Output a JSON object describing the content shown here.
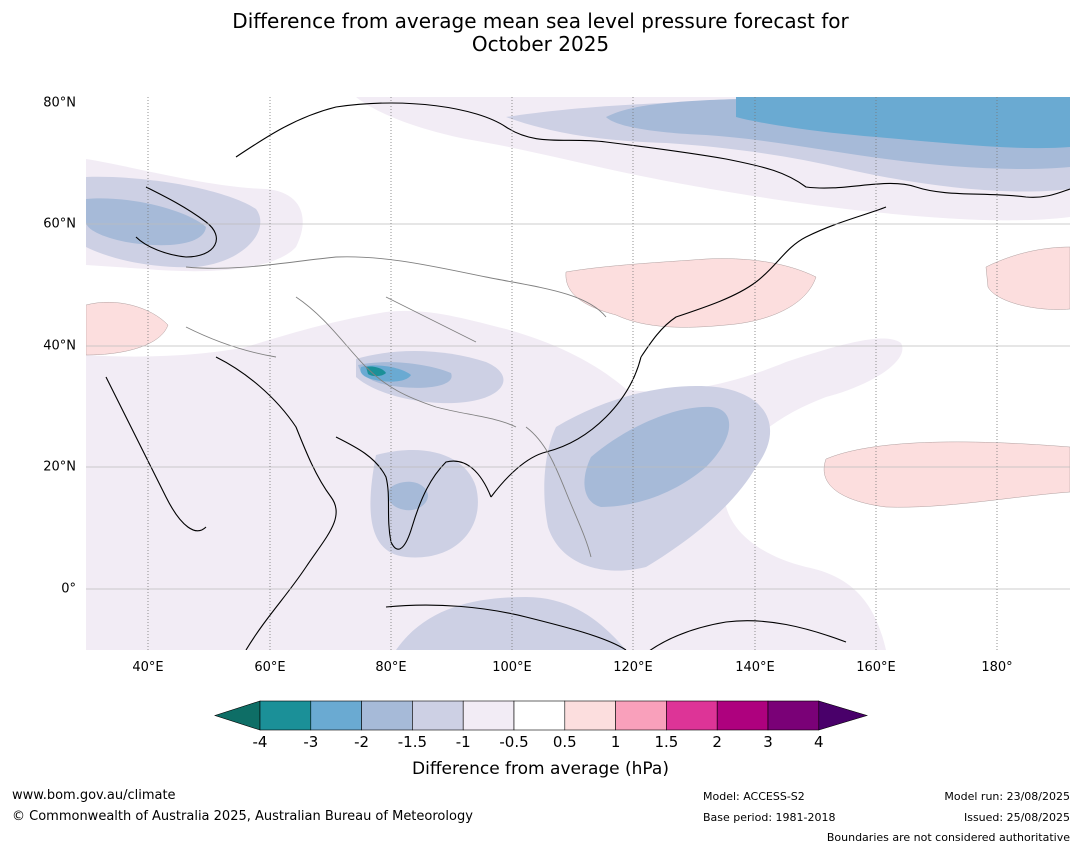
{
  "title_line1": "Difference from average mean sea level pressure forecast for",
  "title_line2": "October 2025",
  "lat_ticks": [
    "80°N",
    "60°N",
    "40°N",
    "20°N",
    "0°"
  ],
  "lon_ticks": [
    "40°E",
    "60°E",
    "80°E",
    "100°E",
    "120°E",
    "140°E",
    "160°E",
    "180°"
  ],
  "colorbar": {
    "ticks": [
      "-4",
      "-3",
      "-2",
      "-1.5",
      "-1",
      "-0.5",
      "0.5",
      "1",
      "1.5",
      "2",
      "3",
      "4"
    ],
    "colors": [
      "#0e6e66",
      "#1b9098",
      "#6aaad2",
      "#a6bad8",
      "#cdd0e4",
      "#f2ecf5",
      "#ffffff",
      "#fcdede",
      "#f9a0bb",
      "#dd3497",
      "#ae017e",
      "#7a0177",
      "#49006a"
    ],
    "label": "Difference from average (hPa)"
  },
  "footer": {
    "website": "www.bom.gov.au/climate",
    "copyright": "© Commonwealth of Australia 2025, Australian Bureau of Meteorology",
    "model": "Model: ACCESS-S2",
    "base_period": "Base period: 1981-2018",
    "model_run": "Model run: 23/08/2025",
    "issued": "Issued: 25/08/2025",
    "disclaimer": "Boundaries are not considered authoritative"
  }
}
